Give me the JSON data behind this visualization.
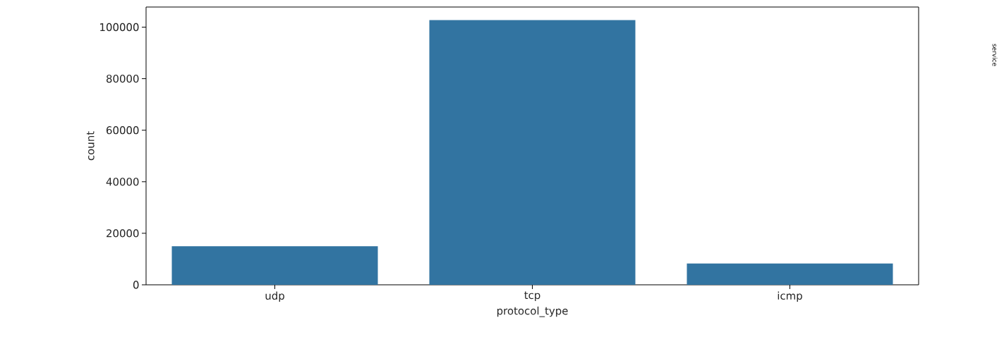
{
  "chart_data": {
    "type": "bar",
    "xlabel": "protocol_type",
    "ylabel": "count",
    "categories": [
      "udp",
      "tcp",
      "icmp"
    ],
    "values": [
      15000,
      102700,
      8300
    ],
    "color": "#3274a1",
    "ylim": [
      0,
      107800
    ],
    "yticks": [
      0,
      20000,
      40000,
      60000,
      80000,
      100000
    ],
    "annotations": [
      "service"
    ]
  }
}
